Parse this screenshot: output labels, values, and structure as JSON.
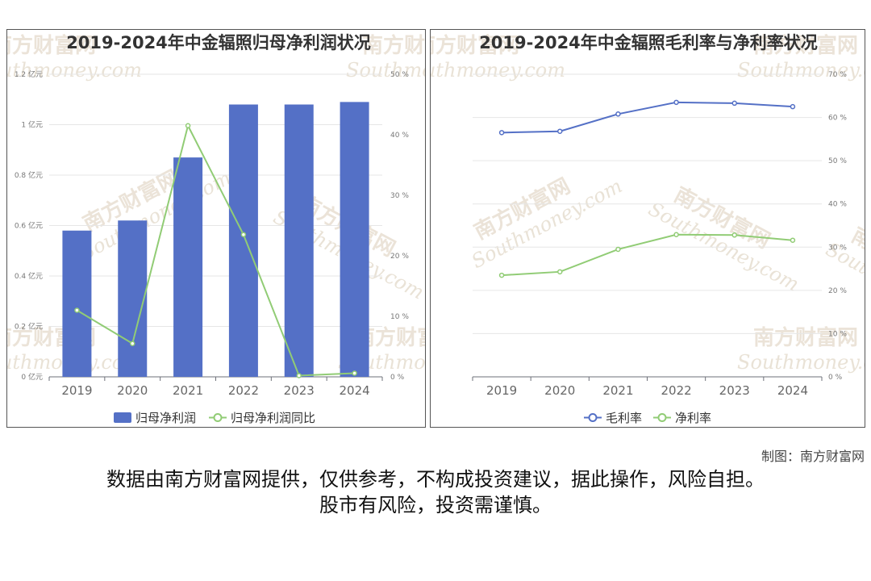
{
  "charts": {
    "left": {
      "title": "2019-2024年中金辐照归母净利润状况",
      "legend": {
        "bar": "归母净利润",
        "line": "归母净利润同比"
      }
    },
    "right": {
      "title": "2019-2024年中金辐照毛利率与净利率状况",
      "legend": {
        "gross": "毛利率",
        "net": "净利率"
      }
    }
  },
  "watermark": {
    "cn": "南方财富网",
    "en": "Southmoney.com"
  },
  "footer": {
    "source": "制图：南方财富网",
    "line1": "数据由南方财富网提供，仅供参考，不构成投资建议，据此操作，风险自担。",
    "line2": "股市有风险，投资需谨慎。"
  },
  "colors": {
    "bar": "#5470c6",
    "green": "#91cc75",
    "blue": "#5470c6",
    "border": "#555555"
  },
  "chart_data": [
    {
      "type": "bar",
      "title": "2019-2024年中金辐照归母净利润状况",
      "categories": [
        "2019",
        "2020",
        "2021",
        "2022",
        "2023",
        "2024"
      ],
      "series": [
        {
          "name": "归母净利润",
          "type": "bar",
          "axis": "left",
          "values": [
            0.58,
            0.62,
            0.87,
            1.08,
            1.08,
            1.09
          ]
        },
        {
          "name": "归母净利润同比",
          "type": "line",
          "axis": "right",
          "values": [
            11.0,
            5.5,
            41.5,
            23.5,
            0.2,
            0.6
          ]
        }
      ],
      "y_left": {
        "ylim": [
          0,
          1.2
        ],
        "ticks": [
          "0 亿元",
          "0.2 亿元",
          "0.4 亿元",
          "0.6 亿元",
          "0.8 亿元",
          "1 亿元",
          "1.2 亿元"
        ]
      },
      "y_right": {
        "ylim": [
          0,
          50
        ],
        "ticks": [
          "0 %",
          "10 %",
          "20 %",
          "30 %",
          "40 %",
          "50 %"
        ]
      },
      "grid": true,
      "legend_position": "bottom"
    },
    {
      "type": "line",
      "title": "2019-2024年中金辐照毛利率与净利率状况",
      "categories": [
        "2019",
        "2020",
        "2021",
        "2022",
        "2023",
        "2024"
      ],
      "series": [
        {
          "name": "毛利率",
          "values": [
            56.5,
            56.8,
            60.8,
            63.5,
            63.3,
            62.5
          ]
        },
        {
          "name": "净利率",
          "values": [
            23.5,
            24.3,
            29.5,
            32.9,
            32.8,
            31.6
          ]
        }
      ],
      "y_right": {
        "ylim": [
          0,
          70
        ],
        "ticks": [
          "0 %",
          "10 %",
          "20 %",
          "30 %",
          "40 %",
          "50 %",
          "60 %",
          "70 %"
        ]
      },
      "grid": true,
      "legend_position": "bottom"
    }
  ]
}
